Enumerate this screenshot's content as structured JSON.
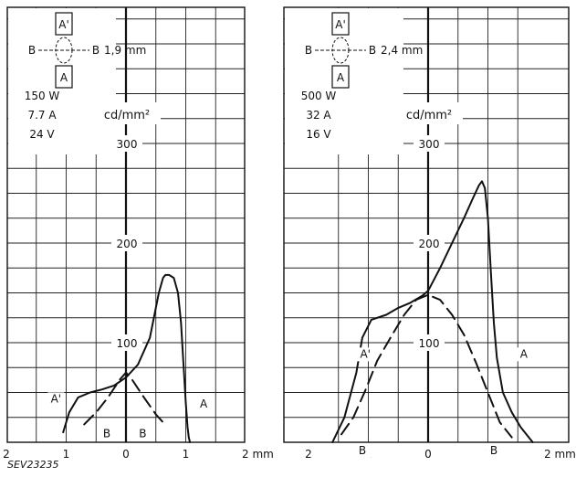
{
  "figure_code": "SEV23235",
  "chart_data": [
    {
      "type": "line",
      "x_unit": "mm",
      "y_unit": "cd/mm²",
      "xlim": [
        -2,
        2
      ],
      "ylim": [
        0,
        350
      ],
      "x_ticks": [
        {
          "value": -2,
          "label": "2"
        },
        {
          "value": -1,
          "label": "1"
        },
        {
          "value": 0,
          "label": "0"
        },
        {
          "value": 1,
          "label": "1"
        },
        {
          "value": 2,
          "label": "2 mm"
        }
      ],
      "y_ticks": [
        {
          "value": 100,
          "label": "100"
        },
        {
          "value": 200,
          "label": "200"
        },
        {
          "value": 300,
          "label": "300"
        }
      ],
      "ylabel": "cd/mm²",
      "arc_gap": "1,9 mm",
      "specs": [
        "150 W",
        "7.7 A",
        "24 V"
      ],
      "diagram": {
        "top": "A'",
        "bottom": "A",
        "left": "B",
        "right": "B"
      },
      "series": [
        {
          "name": "A",
          "dash": false,
          "x": [
            -1.05,
            -0.95,
            -0.8,
            -0.6,
            -0.4,
            -0.2,
            0.0,
            0.2,
            0.4,
            0.55,
            0.62,
            0.66,
            0.72,
            0.8,
            0.87,
            0.92,
            0.96,
            1.0,
            1.03,
            1.05,
            1.07
          ],
          "y": [
            10,
            30,
            45,
            50,
            53,
            57,
            65,
            78,
            105,
            150,
            165,
            168,
            168,
            165,
            150,
            120,
            80,
            40,
            15,
            5,
            0
          ]
        },
        {
          "name": "B",
          "dash": true,
          "x": [
            -0.7,
            -0.5,
            -0.3,
            -0.1,
            0.0,
            0.1,
            0.3,
            0.5,
            0.65
          ],
          "y": [
            18,
            30,
            45,
            63,
            70,
            63,
            45,
            28,
            18
          ]
        }
      ],
      "annotations": [
        {
          "text": "A'",
          "x": -1.17,
          "y": 40
        },
        {
          "text": "A",
          "x": 1.3,
          "y": 35
        },
        {
          "text": "B",
          "x": -0.32,
          "y": 5
        },
        {
          "text": "B",
          "x": 0.28,
          "y": 5
        }
      ]
    },
    {
      "type": "line",
      "x_unit": "mm",
      "y_unit": "cd/mm²",
      "xlim": [
        -2,
        2
      ],
      "ylim": [
        0,
        350
      ],
      "x_ticks": [
        {
          "value": -2,
          "label": "2"
        },
        {
          "value": -1,
          "label": "1"
        },
        {
          "value": 0,
          "label": "0"
        },
        {
          "value": 1,
          "label": "1"
        },
        {
          "value": 2,
          "label": "2 mm"
        }
      ],
      "y_ticks": [
        {
          "value": 100,
          "label": "100"
        },
        {
          "value": 200,
          "label": "200"
        },
        {
          "value": 300,
          "label": "300"
        }
      ],
      "ylabel": "cd/mm²",
      "arc_gap": "2,4 mm",
      "specs": [
        "500 W",
        "32 A",
        "16 V"
      ],
      "diagram": {
        "top": "A'",
        "bottom": "A",
        "left": "B",
        "right": "B"
      },
      "series": [
        {
          "name": "A",
          "dash": false,
          "x": [
            -1.6,
            -1.4,
            -1.2,
            -1.1,
            -0.95,
            -0.7,
            -0.5,
            -0.3,
            -0.1,
            0.0,
            0.2,
            0.4,
            0.6,
            0.75,
            0.85,
            0.9,
            0.95,
            1.0,
            1.05,
            1.1,
            1.15,
            1.25,
            1.4,
            1.55,
            1.75
          ],
          "y": [
            0,
            25,
            70,
            105,
            123,
            128,
            135,
            140,
            147,
            152,
            175,
            200,
            225,
            245,
            258,
            262,
            255,
            225,
            170,
            120,
            85,
            50,
            30,
            15,
            0
          ]
        },
        {
          "name": "B",
          "dash": true,
          "x": [
            -1.45,
            -1.25,
            -1.05,
            -0.85,
            -0.6,
            -0.4,
            -0.2,
            0.0,
            0.2,
            0.4,
            0.6,
            0.8,
            1.0,
            1.2,
            1.4
          ],
          "y": [
            8,
            25,
            52,
            82,
            108,
            128,
            143,
            148,
            143,
            128,
            108,
            80,
            50,
            20,
            5
          ]
        }
      ],
      "annotations": [
        {
          "text": "A'",
          "x": -1.05,
          "y": 85
        },
        {
          "text": "A",
          "x": 1.6,
          "y": 85
        },
        {
          "text": "B",
          "x": -1.1,
          "y": -12
        },
        {
          "text": "B",
          "x": 1.1,
          "y": -12
        }
      ]
    }
  ]
}
